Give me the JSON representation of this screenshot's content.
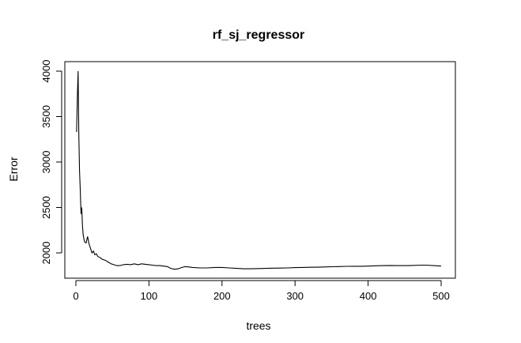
{
  "chart_data": {
    "type": "line",
    "title": "rf_sj_regressor",
    "xlabel": "trees",
    "ylabel": "Error",
    "xlim": [
      0,
      500
    ],
    "ylim": [
      1800,
      4100
    ],
    "xticks": [
      "0",
      "100",
      "200",
      "300",
      "400",
      "500"
    ],
    "yticks": [
      "2000",
      "2500",
      "3000",
      "3500",
      "4000"
    ],
    "grid": false,
    "line_color": "#000000",
    "series": [
      {
        "x": [
          1,
          2,
          3,
          4,
          5,
          6,
          7,
          8,
          9,
          10,
          11,
          12,
          14,
          16,
          18,
          20,
          22,
          24,
          26,
          28,
          30,
          33,
          36,
          40,
          44,
          48,
          52,
          56,
          60,
          65,
          70,
          75,
          80,
          85,
          90,
          95,
          100,
          105,
          110,
          115,
          120,
          125,
          130,
          135,
          140,
          145,
          150,
          160,
          170,
          180,
          190,
          200,
          210,
          220,
          230,
          240,
          250,
          260,
          270,
          280,
          290,
          300,
          310,
          320,
          330,
          340,
          350,
          360,
          370,
          380,
          390,
          400,
          410,
          420,
          430,
          440,
          450,
          460,
          470,
          480,
          490,
          500
        ],
        "y": [
          3330,
          3700,
          4000,
          3300,
          2900,
          2700,
          2430,
          2500,
          2300,
          2200,
          2150,
          2120,
          2110,
          2180,
          2100,
          2050,
          2000,
          2020,
          1980,
          1990,
          1960,
          1950,
          1930,
          1920,
          1900,
          1880,
          1870,
          1860,
          1860,
          1870,
          1875,
          1870,
          1880,
          1870,
          1880,
          1875,
          1870,
          1865,
          1860,
          1860,
          1855,
          1850,
          1830,
          1820,
          1825,
          1840,
          1850,
          1840,
          1835,
          1835,
          1840,
          1840,
          1835,
          1830,
          1825,
          1825,
          1828,
          1830,
          1832,
          1833,
          1835,
          1838,
          1840,
          1842,
          1843,
          1845,
          1848,
          1850,
          1852,
          1853,
          1853,
          1855,
          1858,
          1860,
          1862,
          1860,
          1860,
          1862,
          1865,
          1865,
          1860,
          1855
        ]
      }
    ]
  }
}
